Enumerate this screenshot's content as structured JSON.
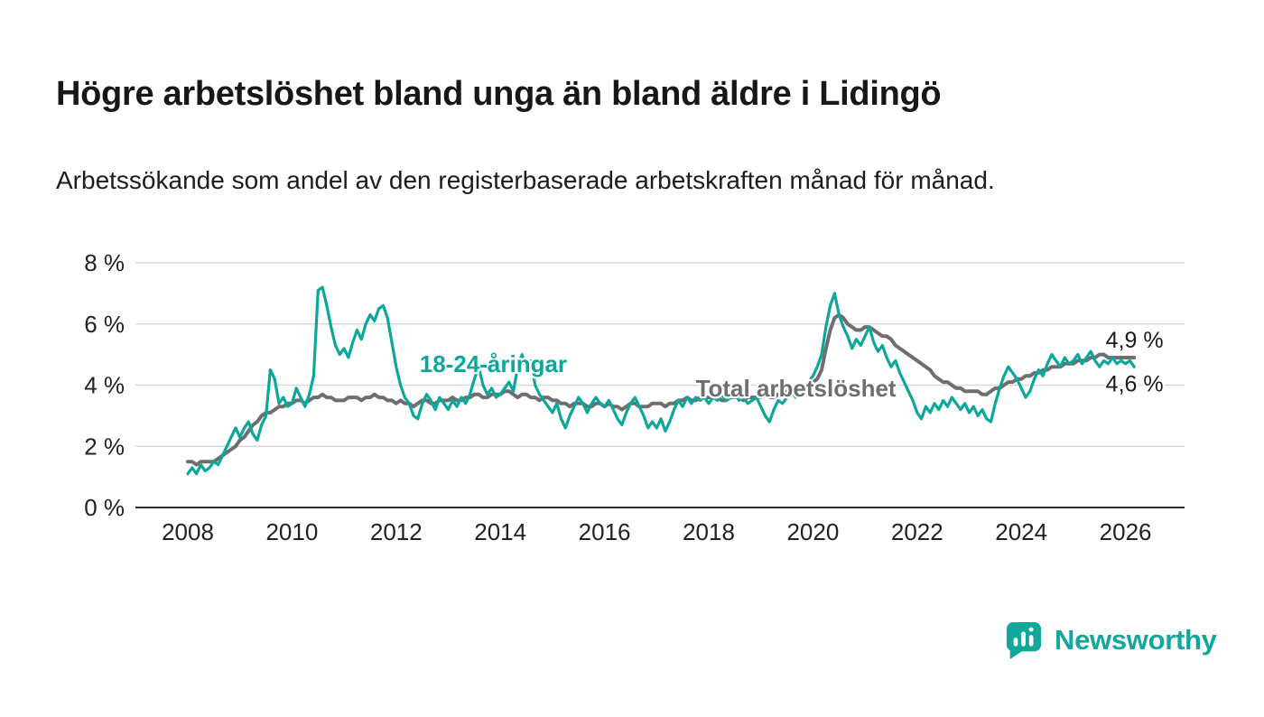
{
  "chart_data": {
    "type": "line",
    "title": "Högre arbetslöshet bland unga än bland äldre i Lidingö",
    "subtitle": "Arbetssökande som andel av den registerbaserade arbetskraften månad för månad.",
    "xlabel": "",
    "ylabel": "",
    "ylim": [
      0,
      8
    ],
    "xlim": [
      2007.0,
      2027.0
    ],
    "grid": "horizontal",
    "legend_position": "inline-labels",
    "x_start": 2008.0,
    "x_interval": "monthly",
    "x_ticks": [
      2008,
      2010,
      2012,
      2014,
      2016,
      2018,
      2020,
      2022,
      2024,
      2026
    ],
    "x_tick_labels": [
      "2008",
      "2010",
      "2012",
      "2014",
      "2016",
      "2018",
      "2020",
      "2022",
      "2024",
      "2026"
    ],
    "y_ticks": [
      0,
      2,
      4,
      6,
      8
    ],
    "y_tick_labels": [
      "0 %",
      "2 %",
      "4 %",
      "6 %",
      "8 %"
    ],
    "series": [
      {
        "name": "Total arbetslöshet",
        "color": "#6E6E6E",
        "stroke_width": 4,
        "end_value_label": "4,9 %",
        "values": [
          1.5,
          1.5,
          1.4,
          1.5,
          1.5,
          1.5,
          1.5,
          1.6,
          1.7,
          1.8,
          1.9,
          2.0,
          2.2,
          2.3,
          2.5,
          2.7,
          2.8,
          3.0,
          3.1,
          3.1,
          3.2,
          3.3,
          3.3,
          3.4,
          3.4,
          3.5,
          3.5,
          3.4,
          3.5,
          3.6,
          3.6,
          3.7,
          3.6,
          3.6,
          3.5,
          3.5,
          3.5,
          3.6,
          3.6,
          3.6,
          3.5,
          3.6,
          3.6,
          3.7,
          3.6,
          3.6,
          3.5,
          3.5,
          3.4,
          3.5,
          3.4,
          3.4,
          3.3,
          3.4,
          3.5,
          3.5,
          3.4,
          3.4,
          3.5,
          3.5,
          3.5,
          3.6,
          3.5,
          3.5,
          3.6,
          3.6,
          3.7,
          3.7,
          3.6,
          3.6,
          3.7,
          3.7,
          3.7,
          3.8,
          3.8,
          3.7,
          3.6,
          3.7,
          3.7,
          3.6,
          3.6,
          3.5,
          3.6,
          3.6,
          3.5,
          3.5,
          3.4,
          3.4,
          3.3,
          3.4,
          3.4,
          3.4,
          3.3,
          3.3,
          3.4,
          3.4,
          3.3,
          3.4,
          3.3,
          3.3,
          3.2,
          3.3,
          3.4,
          3.4,
          3.3,
          3.3,
          3.3,
          3.4,
          3.4,
          3.4,
          3.3,
          3.4,
          3.4,
          3.5,
          3.5,
          3.6,
          3.5,
          3.5,
          3.6,
          3.6,
          3.6,
          3.6,
          3.6,
          3.5,
          3.5,
          3.6,
          3.6,
          3.6,
          3.5,
          3.6,
          3.6,
          3.6,
          3.6,
          3.7,
          3.6,
          3.6,
          3.7,
          3.7,
          3.8,
          3.8,
          3.8,
          3.9,
          4.0,
          4.0,
          4.1,
          4.2,
          4.5,
          5.2,
          5.8,
          6.2,
          6.3,
          6.2,
          6.0,
          5.9,
          5.8,
          5.8,
          5.9,
          5.9,
          5.8,
          5.7,
          5.6,
          5.6,
          5.5,
          5.3,
          5.2,
          5.1,
          5.0,
          4.9,
          4.8,
          4.7,
          4.6,
          4.5,
          4.3,
          4.2,
          4.1,
          4.1,
          4.0,
          3.9,
          3.9,
          3.8,
          3.8,
          3.8,
          3.8,
          3.7,
          3.7,
          3.8,
          3.9,
          3.9,
          4.0,
          4.1,
          4.1,
          4.2,
          4.2,
          4.3,
          4.3,
          4.4,
          4.4,
          4.5,
          4.5,
          4.6,
          4.6,
          4.6,
          4.7,
          4.7,
          4.7,
          4.8,
          4.8,
          4.8,
          4.9,
          4.9,
          5.0,
          5.0,
          4.9,
          4.9,
          4.9,
          4.9,
          4.9,
          4.9,
          4.9
        ]
      },
      {
        "name": "18-24-åringar",
        "color": "#0BA79B",
        "stroke_width": 3.2,
        "end_value_label": "4,6 %",
        "values": [
          1.1,
          1.3,
          1.1,
          1.4,
          1.2,
          1.3,
          1.5,
          1.4,
          1.7,
          2.0,
          2.3,
          2.6,
          2.3,
          2.6,
          2.8,
          2.4,
          2.2,
          2.7,
          3.0,
          4.5,
          4.2,
          3.4,
          3.6,
          3.3,
          3.4,
          3.9,
          3.6,
          3.3,
          3.7,
          4.3,
          7.1,
          7.2,
          6.6,
          5.9,
          5.3,
          5.0,
          5.2,
          4.9,
          5.4,
          5.8,
          5.5,
          6.0,
          6.3,
          6.1,
          6.5,
          6.6,
          6.2,
          5.4,
          4.6,
          4.0,
          3.6,
          3.4,
          3.0,
          2.9,
          3.4,
          3.7,
          3.5,
          3.2,
          3.6,
          3.4,
          3.2,
          3.5,
          3.3,
          3.6,
          3.4,
          3.7,
          4.2,
          4.6,
          4.0,
          3.7,
          3.9,
          3.6,
          3.7,
          3.9,
          4.1,
          3.8,
          4.6,
          5.0,
          4.5,
          4.8,
          4.0,
          3.7,
          3.5,
          3.3,
          3.1,
          3.4,
          2.9,
          2.6,
          3.0,
          3.3,
          3.6,
          3.4,
          3.1,
          3.4,
          3.6,
          3.4,
          3.3,
          3.5,
          3.2,
          2.9,
          2.7,
          3.1,
          3.4,
          3.6,
          3.3,
          3.0,
          2.6,
          2.8,
          2.6,
          2.9,
          2.5,
          2.8,
          3.2,
          3.5,
          3.3,
          3.6,
          3.4,
          3.6,
          3.5,
          3.6,
          3.4,
          3.6,
          3.5,
          3.7,
          3.5,
          3.6,
          3.7,
          3.5,
          3.6,
          3.4,
          3.5,
          3.6,
          3.3,
          3.0,
          2.8,
          3.2,
          3.5,
          3.4,
          3.6,
          3.8,
          3.6,
          3.7,
          3.9,
          4.1,
          4.3,
          4.6,
          5.0,
          5.9,
          6.6,
          7.0,
          6.3,
          5.9,
          5.6,
          5.2,
          5.5,
          5.3,
          5.6,
          5.9,
          5.4,
          5.1,
          5.3,
          4.9,
          4.6,
          4.8,
          4.4,
          4.1,
          3.8,
          3.5,
          3.1,
          2.9,
          3.3,
          3.1,
          3.4,
          3.2,
          3.5,
          3.3,
          3.6,
          3.4,
          3.2,
          3.4,
          3.1,
          3.3,
          3.0,
          3.2,
          2.9,
          2.8,
          3.4,
          3.9,
          4.3,
          4.6,
          4.4,
          4.2,
          3.9,
          3.6,
          3.8,
          4.2,
          4.5,
          4.3,
          4.7,
          5.0,
          4.8,
          4.6,
          4.9,
          4.7,
          4.8,
          5.0,
          4.7,
          4.9,
          5.1,
          4.8,
          4.6,
          4.8,
          4.7,
          4.9,
          4.7,
          4.8,
          4.7,
          4.8,
          4.6
        ]
      }
    ],
    "annotations": [
      {
        "text": "18-24-åringar",
        "x_year": 2012.45,
        "y_pct": 4.43,
        "color": "#0BA79B",
        "bold": true,
        "size": 26
      },
      {
        "text": "Total arbetslöshet",
        "x_year": 2017.75,
        "y_pct": 3.63,
        "color": "#6E6E6E",
        "bold": true,
        "size": 26
      },
      {
        "text": "4,9 %",
        "x_year": 2025.62,
        "y_pct": 5.22,
        "color": "#1A1A1A",
        "bold": false,
        "size": 25
      },
      {
        "text": "4,6 %",
        "x_year": 2025.62,
        "y_pct": 3.8,
        "color": "#1A1A1A",
        "bold": false,
        "size": 25
      }
    ],
    "axis_color": "#2F2F2F",
    "gridline_color": "#D8D8D8",
    "tick_label_color": "#222222"
  },
  "branding": {
    "wordmark": "Newsworthy",
    "color": "#12A79B",
    "icon": "bar-chart-bubble-icon"
  }
}
